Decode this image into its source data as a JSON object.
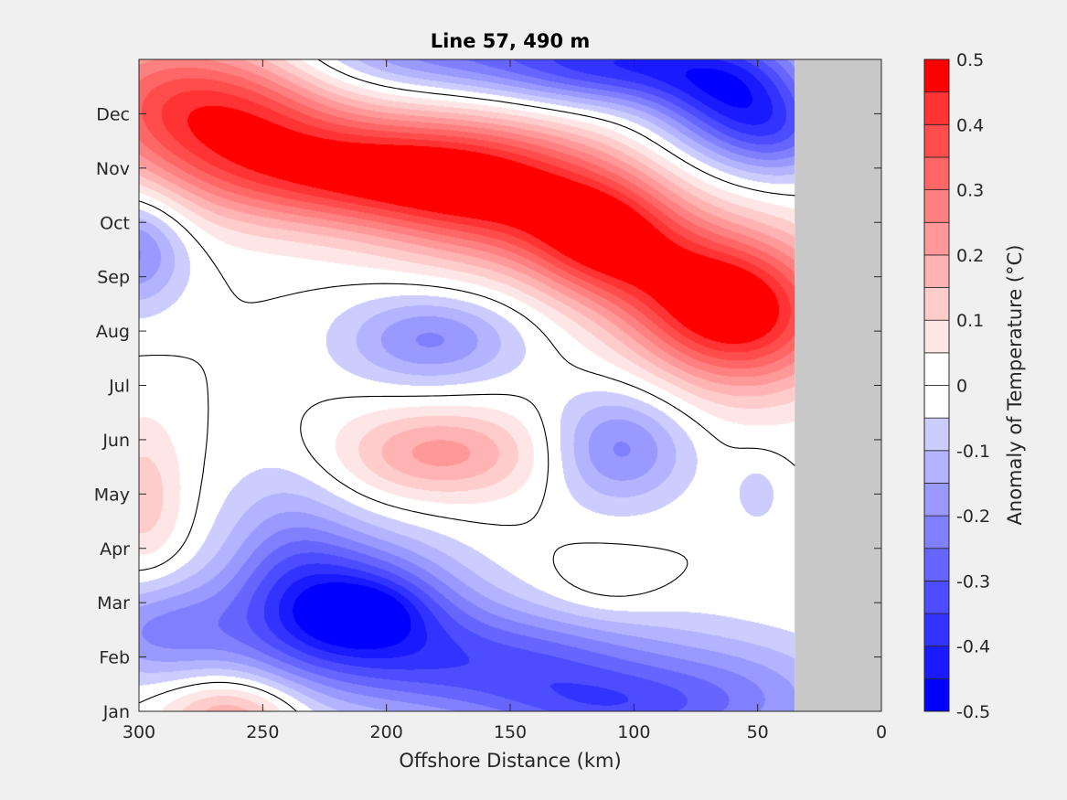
{
  "chart_data": {
    "type": "heatmap",
    "subtype": "filled-contour",
    "title": "Line 57, 490 m",
    "xlabel": "Offshore Distance (km)",
    "ylabel": "",
    "colorbar_label": "Anomaly of Temperature (°C)",
    "xlim": [
      300,
      0
    ],
    "x_direction": "reversed",
    "ylim": [
      1,
      13
    ],
    "xticks": [
      300,
      250,
      200,
      150,
      100,
      50,
      0
    ],
    "xtick_labels": [
      "300",
      "250",
      "200",
      "150",
      "100",
      "50",
      "0"
    ],
    "yticks": [
      1,
      2,
      3,
      4,
      5,
      6,
      7,
      8,
      9,
      10,
      11,
      12
    ],
    "ytick_labels": [
      "Jan",
      "Feb",
      "Mar",
      "Apr",
      "May",
      "Jun",
      "Jul",
      "Aug",
      "Sep",
      "Oct",
      "Nov",
      "Dec"
    ],
    "colorbar": {
      "range": [
        -0.5,
        0.5
      ],
      "levels_step": 0.05,
      "ticks": [
        0.5,
        0.4,
        0.3,
        0.2,
        0.1,
        0,
        -0.1,
        -0.2,
        -0.3,
        -0.4,
        -0.5
      ],
      "tick_labels": [
        "0.5",
        "0.4",
        "0.3",
        "0.2",
        "0.1",
        "0",
        "-0.1",
        "-0.2",
        "-0.3",
        "-0.4",
        "-0.5"
      ],
      "colors": [
        "#0000ff",
        "#1a1aff",
        "#3333ff",
        "#4d4dff",
        "#6666ff",
        "#8080ff",
        "#9999ff",
        "#b3b3ff",
        "#ccccff",
        "#e6e6ff",
        "#ffffff",
        "#ffffff",
        "#ffe6e6",
        "#ffcccc",
        "#ffb3b3",
        "#ff9999",
        "#ff8080",
        "#ff6666",
        "#ff4d4d",
        "#ff3333",
        "#ff1a1a",
        "#ff0000"
      ]
    },
    "contour_lines": [
      0
    ],
    "no_data_region": {
      "x_from": 35,
      "x_to": 0,
      "color": "#c8c8c8"
    },
    "field_features": [
      {
        "km": 205,
        "month": 10.95,
        "value": 0.44,
        "sx": 45,
        "sy": 0.75,
        "rot": -0.35
      },
      {
        "km": 262,
        "month": 12.0,
        "value": 0.34,
        "sx": 30,
        "sy": 1.0,
        "rot": 0
      },
      {
        "km": 150,
        "month": 10.4,
        "value": 0.33,
        "sx": 35,
        "sy": 0.9,
        "rot": 0
      },
      {
        "km": 112,
        "month": 9.7,
        "value": 0.36,
        "sx": 22,
        "sy": 0.8,
        "rot": 0
      },
      {
        "km": 55,
        "month": 8.3,
        "value": 0.45,
        "sx": 28,
        "sy": 1.0,
        "rot": 0
      },
      {
        "km": 80,
        "month": 8.9,
        "value": 0.2,
        "sx": 25,
        "sy": 0.9,
        "rot": 0
      },
      {
        "km": 300,
        "month": 12.3,
        "value": 0.18,
        "sx": 25,
        "sy": 1.0,
        "rot": 0
      },
      {
        "km": 60,
        "month": 12.3,
        "value": -0.34,
        "sx": 22,
        "sy": 0.75,
        "rot": 0
      },
      {
        "km": 105,
        "month": 12.9,
        "value": -0.33,
        "sx": 35,
        "sy": 0.55,
        "rot": 0
      },
      {
        "km": 180,
        "month": 13.2,
        "value": -0.22,
        "sx": 45,
        "sy": 0.55,
        "rot": 0
      },
      {
        "km": 40,
        "month": 11.6,
        "value": -0.18,
        "sx": 18,
        "sy": 0.6,
        "rot": 0
      },
      {
        "km": 302,
        "month": 9.5,
        "value": -0.22,
        "sx": 15,
        "sy": 0.75,
        "rot": 0
      },
      {
        "km": 182,
        "month": 7.85,
        "value": -0.21,
        "sx": 25,
        "sy": 0.6,
        "rot": -0.4
      },
      {
        "km": 106,
        "month": 5.85,
        "value": -0.22,
        "sx": 20,
        "sy": 0.75,
        "rot": -0.5
      },
      {
        "km": 50,
        "month": 5.0,
        "value": -0.07,
        "sx": 8,
        "sy": 0.5,
        "rot": 0
      },
      {
        "km": 178,
        "month": 5.75,
        "value": 0.22,
        "sx": 30,
        "sy": 0.6,
        "rot": -0.35
      },
      {
        "km": 298,
        "month": 4.9,
        "value": 0.13,
        "sx": 12,
        "sy": 1.1,
        "rot": 0
      },
      {
        "km": 262,
        "month": 0.95,
        "value": 0.22,
        "sx": 20,
        "sy": 0.5,
        "rot": 0
      },
      {
        "km": 112,
        "month": 3.3,
        "value": 0.06,
        "sx": 18,
        "sy": 0.5,
        "rot": 0
      },
      {
        "km": 210,
        "month": 2.85,
        "value": -0.38,
        "sx": 28,
        "sy": 0.9,
        "rot": -0.4
      },
      {
        "km": 210,
        "month": 2.8,
        "value": -0.12,
        "sx": 14,
        "sy": 0.35,
        "rot": -0.3
      },
      {
        "km": 240,
        "month": 3.5,
        "value": -0.18,
        "sx": 20,
        "sy": 1.4,
        "rot": 0
      },
      {
        "km": 150,
        "month": 1.8,
        "value": -0.3,
        "sx": 45,
        "sy": 0.8,
        "rot": -0.3
      },
      {
        "km": 290,
        "month": 2.5,
        "value": -0.22,
        "sx": 25,
        "sy": 0.7,
        "rot": 0
      },
      {
        "km": 60,
        "month": 1.2,
        "value": -0.18,
        "sx": 35,
        "sy": 0.8,
        "rot": 0
      },
      {
        "km": 110,
        "month": 1.0,
        "value": -0.15,
        "sx": 30,
        "sy": 0.5,
        "rot": 0
      }
    ]
  }
}
